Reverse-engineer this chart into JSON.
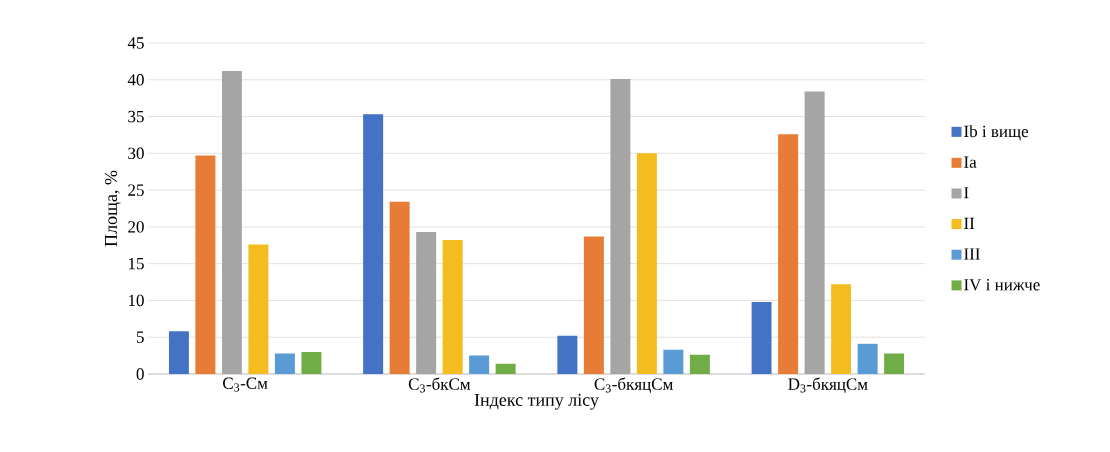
{
  "chart_data": {
    "type": "bar",
    "xlabel": "Індекс типу лісу",
    "ylabel": "Площа, %",
    "categories": [
      "C$_{3}$-См",
      "C$_{3}$-бкСм",
      "C$_{3}$-бкяцСм",
      "D$_{3}$-бкяцСм"
    ],
    "series": [
      {
        "name": "Ib і вище",
        "color": "#4472c4",
        "values": [
          5.8,
          35.3,
          5.2,
          9.8
        ]
      },
      {
        "name": "Ia",
        "color": "#e67c35",
        "values": [
          29.7,
          23.4,
          18.7,
          32.6
        ]
      },
      {
        "name": "I",
        "color": "#a5a5a5",
        "values": [
          41.2,
          19.3,
          40.1,
          38.4
        ]
      },
      {
        "name": "II",
        "color": "#f5bc1f",
        "values": [
          17.6,
          18.2,
          30.0,
          12.2
        ]
      },
      {
        "name": "III",
        "color": "#5b9bd5",
        "values": [
          2.8,
          2.5,
          3.3,
          4.1
        ]
      },
      {
        "name": "IV і нижче",
        "color": "#70ad47",
        "values": [
          3.0,
          1.4,
          2.6,
          2.8
        ]
      }
    ],
    "ylim": [
      0,
      45
    ],
    "yticks": [
      0,
      5,
      10,
      15,
      20,
      25,
      30,
      35,
      40,
      45
    ],
    "grid": "y",
    "legend": "right"
  }
}
